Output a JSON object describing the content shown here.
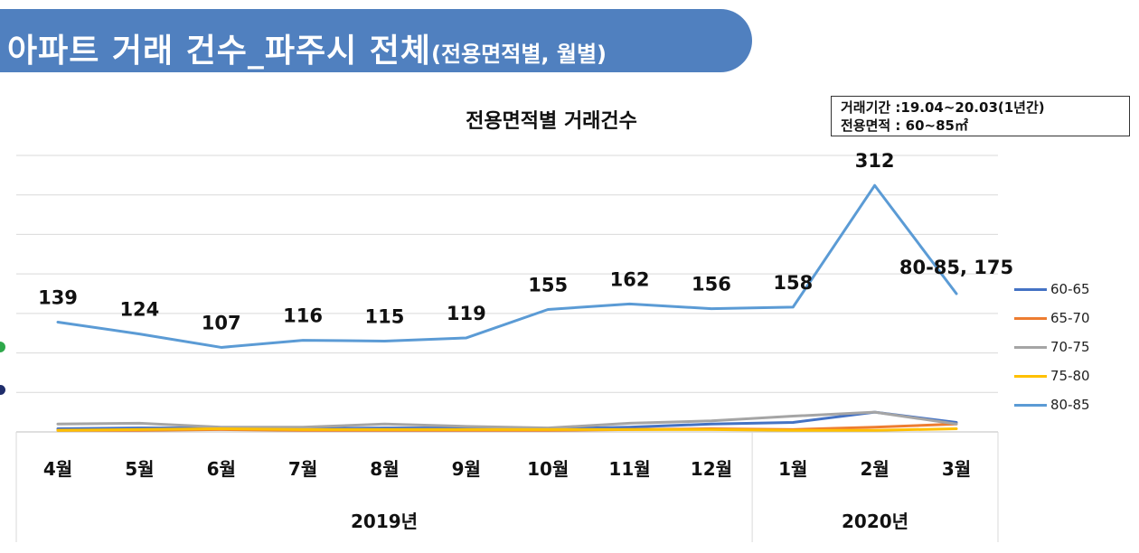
{
  "banner": {
    "title": "아파트 거래 건수_파주시 전체",
    "subtitle": "(전용면적별, 월별)",
    "color": "#5080bf"
  },
  "info_box": {
    "line1": "거래기간 :19.04~20.03(1년간)",
    "line2": "전용면적 : 60~85㎡"
  },
  "chart_data": {
    "type": "line",
    "title": "전용면적별 거래건수",
    "categories": [
      "4월",
      "5월",
      "6월",
      "7월",
      "8월",
      "9월",
      "10월",
      "11월",
      "12월",
      "1월",
      "2월",
      "3월"
    ],
    "year_groups": [
      {
        "label": "2019년",
        "months": 9
      },
      {
        "label": "2020년",
        "months": 3
      }
    ],
    "ylim": [
      0,
      350
    ],
    "grid": true,
    "legend_position": "right",
    "series": [
      {
        "name": "60-65",
        "color": "#4472c4",
        "values": [
          4,
          5,
          5,
          4,
          5,
          5,
          4,
          6,
          10,
          12,
          25,
          12
        ]
      },
      {
        "name": "65-70",
        "color": "#ed7d31",
        "values": [
          2,
          2,
          3,
          2,
          2,
          2,
          2,
          3,
          4,
          3,
          6,
          10
        ]
      },
      {
        "name": "70-75",
        "color": "#a5a5a5",
        "values": [
          10,
          11,
          6,
          6,
          10,
          7,
          5,
          11,
          14,
          20,
          25,
          10
        ]
      },
      {
        "name": "75-80",
        "color": "#ffc000",
        "values": [
          2,
          3,
          4,
          3,
          3,
          3,
          3,
          3,
          3,
          2,
          2,
          4
        ]
      },
      {
        "name": "80-85",
        "color": "#5b9bd5",
        "values": [
          139,
          124,
          107,
          116,
          115,
          119,
          155,
          162,
          156,
          158,
          312,
          175
        ]
      }
    ],
    "data_labels": [
      "139",
      "124",
      "107",
      "116",
      "115",
      "119",
      "155",
      "162",
      "156",
      "158",
      "312",
      "80-85, 175"
    ]
  },
  "side_dots": [
    {
      "name": "green-dot",
      "color": "#2ea84a"
    },
    {
      "name": "navy-dot",
      "color": "#1f2d6b"
    }
  ]
}
